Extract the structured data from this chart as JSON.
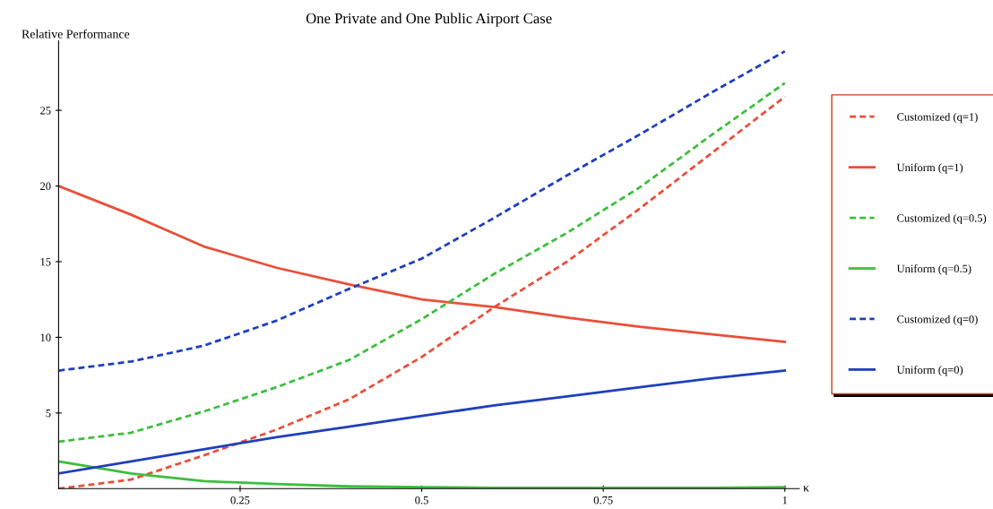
{
  "chart_data": {
    "type": "line",
    "title": "One Private and One Public Airport Case",
    "ylabel": "Relative Performance",
    "xlabel": "κ",
    "x": [
      0,
      0.1,
      0.2,
      0.3,
      0.4,
      0.5,
      0.6,
      0.7,
      0.8,
      0.9,
      1
    ],
    "series": [
      {
        "name": "Customized (q=1)",
        "color": "#e8503a",
        "line_style": "dashed",
        "values": [
          0,
          0.6,
          2.2,
          3.9,
          5.9,
          8.7,
          12.0,
          15.0,
          18.5,
          22.2,
          25.9
        ]
      },
      {
        "name": "Uniform (q=1)",
        "color": "#e8503a",
        "line_style": "solid",
        "values": [
          20,
          18.1,
          16.0,
          14.6,
          13.5,
          12.5,
          12.0,
          11.3,
          10.7,
          10.2,
          9.7
        ]
      },
      {
        "name": "Customized (q=0.5)",
        "color": "#3cbf3c",
        "line_style": "dashed",
        "values": [
          3.1,
          3.7,
          5.1,
          6.7,
          8.5,
          11.2,
          14.2,
          16.9,
          19.9,
          23.4,
          26.8
        ]
      },
      {
        "name": "Uniform (q=0.5)",
        "color": "#3cbf3c",
        "line_style": "solid",
        "values": [
          1.8,
          1.0,
          0.5,
          0.3,
          0.15,
          0.1,
          0.05,
          0.05,
          0.05,
          0.05,
          0.1
        ]
      },
      {
        "name": "Customized (q=0)",
        "color": "#1f3fbf",
        "line_style": "dashed",
        "values": [
          7.8,
          8.4,
          9.45,
          11.1,
          13.2,
          15.2,
          17.9,
          20.7,
          23.4,
          26.2,
          28.9
        ]
      },
      {
        "name": "Uniform (q=0)",
        "color": "#1f3fbf",
        "line_style": "solid",
        "values": [
          1.0,
          1.8,
          2.6,
          3.4,
          4.1,
          4.8,
          5.5,
          6.1,
          6.7,
          7.3,
          7.8
        ]
      }
    ],
    "xlim": [
      0,
      1.02
    ],
    "ylim": [
      0,
      29.6
    ],
    "xticks": [
      {
        "value": 0.25,
        "label": "0.25"
      },
      {
        "value": 0.5,
        "label": "0.5"
      },
      {
        "value": 0.75,
        "label": "0.75"
      },
      {
        "value": 1,
        "label": "1"
      }
    ],
    "yticks": [
      5,
      10,
      15,
      20,
      25
    ],
    "grid": false,
    "legend": "right",
    "marker": "none"
  }
}
